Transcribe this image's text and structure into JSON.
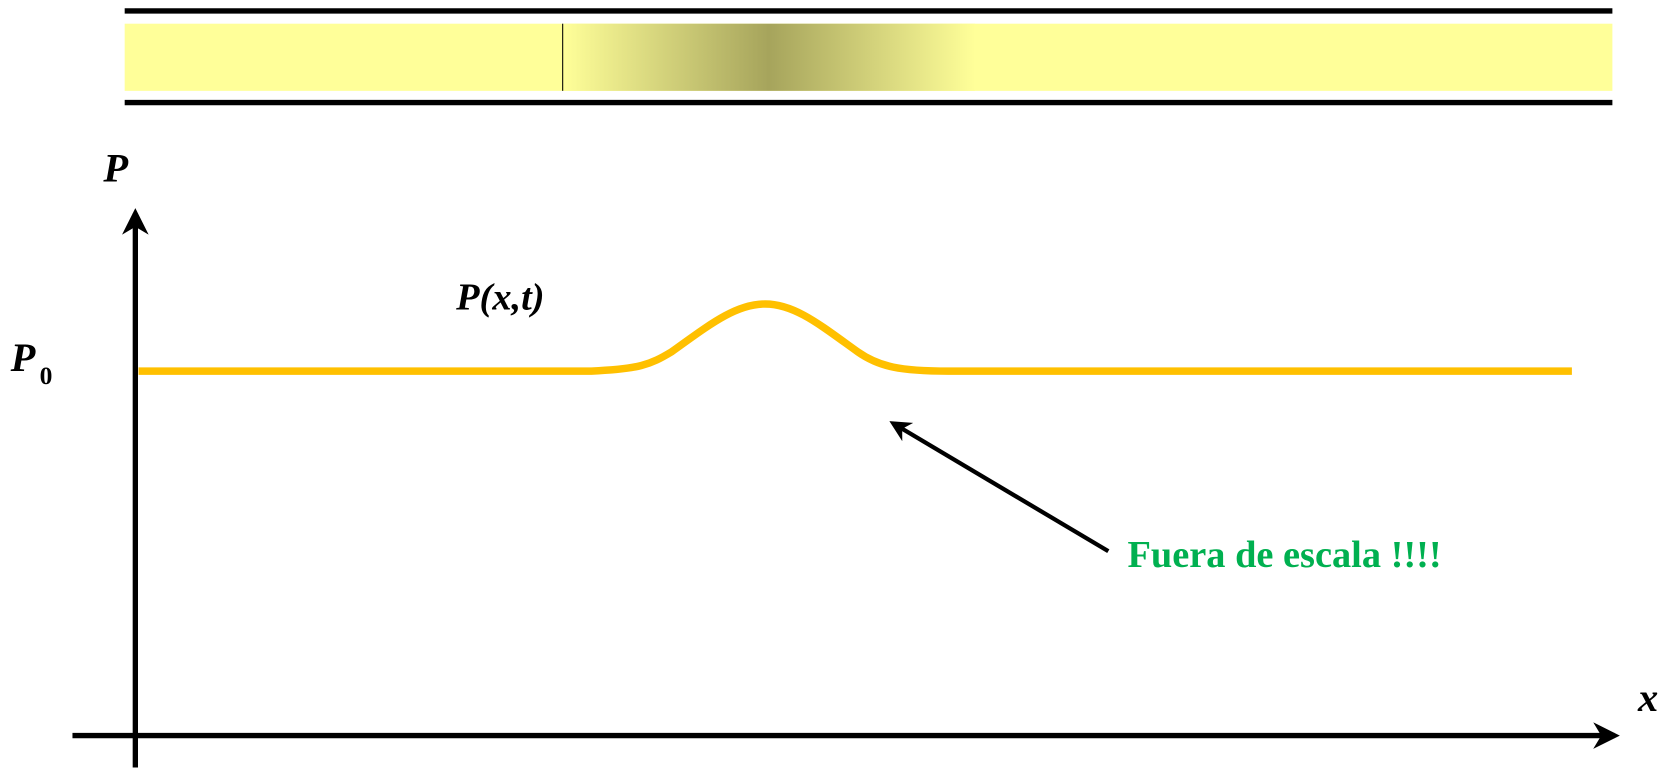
{
  "axis_labels": {
    "y": "P",
    "x": "x"
  },
  "curve_label": "P(x,t)",
  "reference_level": {
    "main": "P",
    "subscript": "0"
  },
  "annotation": "Fuera de escala !!!!"
}
